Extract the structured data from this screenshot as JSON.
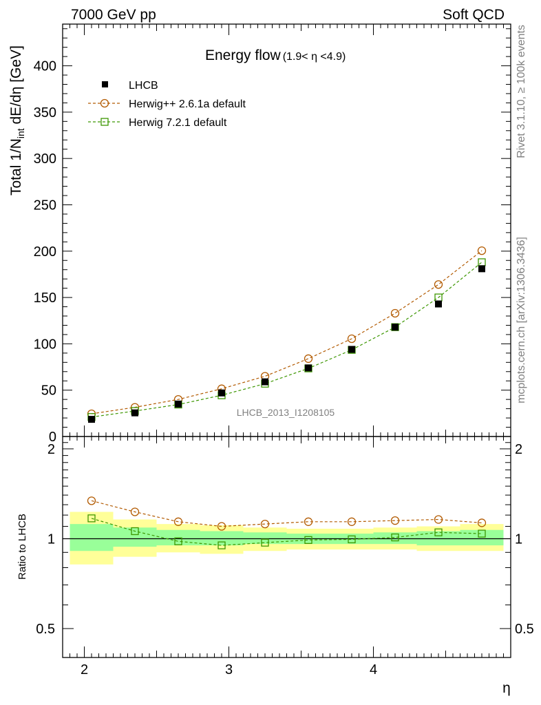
{
  "header": {
    "left": "7000 GeV pp",
    "right": "Soft QCD"
  },
  "side_text": {
    "rivet": "Rivet 3.1.10, ≥ 100k events",
    "mcplots": "mcplots.cern.ch [arXiv:1306.3436]"
  },
  "colors": {
    "lhcb": "#000000",
    "herwigpp": "#b25a00",
    "herwig7": "#3c9600",
    "band_outer": "#ffff99",
    "band_inner": "#99ff99"
  },
  "chart_data": {
    "type": "scatter",
    "title": "Energy flow",
    "title_suffix": "(1.9< η <4.9)",
    "watermark": "LHCB_2013_I1208105",
    "xlabel": "η",
    "ylabel_main": "Total 1/N",
    "ylabel_sub": "int",
    "ylabel_rest": " dE/dη [GeV]",
    "ratio_ylabel": "Ratio to LHCB",
    "xlim": [
      1.85,
      4.95
    ],
    "ylim": [
      0,
      445
    ],
    "ratio_ylim": [
      0.4,
      2.2
    ],
    "ratio_log": true,
    "x_ticks": [
      "2",
      "3",
      "4"
    ],
    "y_ticks": [
      "0",
      "50",
      "100",
      "150",
      "200",
      "250",
      "300",
      "350",
      "400"
    ],
    "ratio_ticks": [
      "0.5",
      "1",
      "2"
    ],
    "legend_position": "top-left",
    "x": [
      2.05,
      2.35,
      2.65,
      2.95,
      3.25,
      3.55,
      3.85,
      4.15,
      4.45,
      4.75
    ],
    "series": [
      {
        "name": "LHCB",
        "marker": "filled-square",
        "values": [
          18.5,
          25.5,
          35,
          47,
          59,
          74,
          94,
          118,
          143,
          181
        ]
      },
      {
        "name": "Herwig++ 2.6.1a default",
        "marker": "open-circle",
        "values": [
          24.5,
          31.5,
          40,
          51.5,
          65,
          84,
          105.5,
          133,
          164,
          200.5
        ]
      },
      {
        "name": "Herwig 7.2.1 default",
        "marker": "open-square",
        "values": [
          21,
          27.5,
          34.5,
          44.5,
          57,
          73.5,
          93.5,
          118,
          150,
          188
        ]
      }
    ],
    "ratio_series": [
      {
        "name": "Herwig++ 2.6.1a default",
        "values": [
          1.34,
          1.23,
          1.14,
          1.1,
          1.12,
          1.14,
          1.14,
          1.15,
          1.16,
          1.13
        ]
      },
      {
        "name": "Herwig 7.2.1 default",
        "values": [
          1.17,
          1.06,
          0.98,
          0.95,
          0.97,
          0.99,
          0.995,
          1.01,
          1.05,
          1.04
        ]
      }
    ],
    "bands": {
      "edges": [
        1.9,
        2.2,
        2.5,
        2.8,
        3.1,
        3.4,
        3.7,
        4.0,
        4.3,
        4.6,
        4.9
      ],
      "outer_low": [
        0.82,
        0.87,
        0.9,
        0.89,
        0.91,
        0.92,
        0.92,
        0.92,
        0.91,
        0.91
      ],
      "outer_high": [
        1.23,
        1.16,
        1.12,
        1.11,
        1.09,
        1.08,
        1.08,
        1.09,
        1.1,
        1.12
      ],
      "inner_low": [
        0.91,
        0.94,
        0.95,
        0.95,
        0.96,
        0.96,
        0.96,
        0.96,
        0.95,
        0.95
      ],
      "inner_high": [
        1.12,
        1.09,
        1.07,
        1.06,
        1.05,
        1.04,
        1.04,
        1.05,
        1.06,
        1.07
      ]
    }
  }
}
